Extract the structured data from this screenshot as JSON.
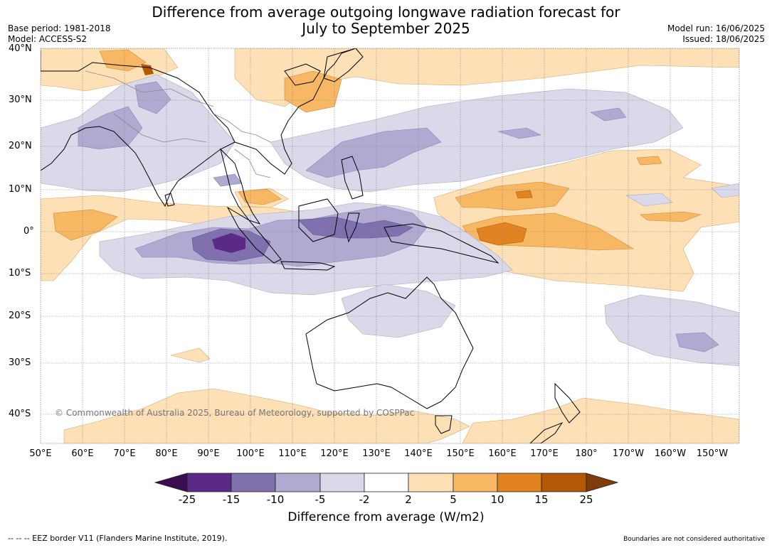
{
  "title": {
    "line1": "Difference from average outgoing longwave radiation forecast for",
    "line2": "July to September 2025"
  },
  "meta": {
    "base_period": "Base period: 1981-2018",
    "model": "Model: ACCESS-S2",
    "model_run": "Model run: 16/06/2025",
    "issued": "Issued: 18/06/2025"
  },
  "map": {
    "lat_labels": [
      "40°N",
      "30°N",
      "20°N",
      "10°N",
      "0°",
      "10°S",
      "20°S",
      "30°S",
      "40°S"
    ],
    "lon_labels": [
      "50°E",
      "60°E",
      "70°E",
      "80°E",
      "90°E",
      "100°E",
      "110°E",
      "120°E",
      "130°E",
      "140°E",
      "150°E",
      "160°E",
      "170°E",
      "180°",
      "170°W",
      "160°W",
      "150°W"
    ],
    "copyright": "© Commonwealth of Australia 2025, Bureau of Meteorology, supported by COSPPac"
  },
  "colorbar": {
    "title": "Difference from average (W/m2)",
    "ticks": [
      "-25",
      "-15",
      "-10",
      "-5",
      "-2",
      "2",
      "5",
      "10",
      "15",
      "25"
    ],
    "colors": [
      "#3a0d4f",
      "#5b2a86",
      "#8070ad",
      "#b1aad0",
      "#d9d9ea",
      "#ffffff",
      "#fde0b6",
      "#f8b763",
      "#e08320",
      "#b35806",
      "#7f3b08"
    ]
  },
  "footer": {
    "eez": "--  --  -- EEZ border V11 (Flanders Marine Institute, 2019).",
    "disclaimer": "Boundaries are not considered authoritative"
  }
}
